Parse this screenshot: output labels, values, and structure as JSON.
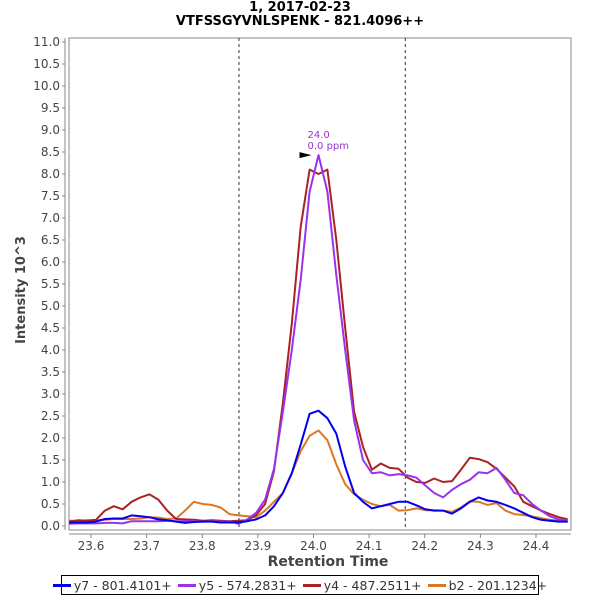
{
  "chart_data": {
    "type": "line",
    "title": "1, 2017-02-23",
    "subtitle": "VTFSSGYVNLSPENK - 821.4096++",
    "xlabel": "Retention Time",
    "ylabel": "Intensity 10^3",
    "xlim": [
      23.56,
      24.463
    ],
    "ylim": [
      0.0,
      11.1
    ],
    "x_ticks": [
      "23.6",
      "23.7",
      "23.8",
      "23.9",
      "24.0",
      "24.1",
      "24.2",
      "24.3",
      "24.4"
    ],
    "y_ticks": [
      "0.0",
      "0.5",
      "1.0",
      "1.5",
      "2.0",
      "2.5",
      "3.0",
      "3.5",
      "4.0",
      "4.5",
      "5.0",
      "5.5",
      "6.0",
      "6.5",
      "7.0",
      "7.5",
      "8.0",
      "8.5",
      "9.0",
      "9.5",
      "10.0",
      "10.5",
      "11.0"
    ],
    "grid": false,
    "legend_position": "bottom",
    "boundaries": [
      23.866,
      24.165
    ],
    "annotation": {
      "rt": "24.0",
      "ppm": "0.0 ppm",
      "x": 24.0,
      "y": 8.43
    },
    "x": [
      23.561,
      23.577,
      23.593,
      23.609,
      23.625,
      23.641,
      23.657,
      23.673,
      23.689,
      23.705,
      23.721,
      23.737,
      23.753,
      23.769,
      23.785,
      23.801,
      23.817,
      23.833,
      23.849,
      23.865,
      23.881,
      23.897,
      23.913,
      23.929,
      23.945,
      23.961,
      23.977,
      23.993,
      24.009,
      24.025,
      24.041,
      24.057,
      24.073,
      24.089,
      24.105,
      24.121,
      24.137,
      24.153,
      24.169,
      24.185,
      24.201,
      24.217,
      24.233,
      24.249,
      24.265,
      24.281,
      24.297,
      24.313,
      24.329,
      24.345,
      24.361,
      24.377,
      24.393,
      24.409,
      24.425,
      24.441,
      24.457
    ],
    "series": [
      {
        "name": "y7 - 801.4101+",
        "color": "#0000ee",
        "values": [
          0.08,
          0.08,
          0.08,
          0.1,
          0.16,
          0.17,
          0.17,
          0.24,
          0.22,
          0.2,
          0.15,
          0.13,
          0.1,
          0.07,
          0.09,
          0.1,
          0.1,
          0.08,
          0.08,
          0.08,
          0.11,
          0.15,
          0.24,
          0.45,
          0.75,
          1.2,
          1.85,
          2.55,
          2.62,
          2.45,
          2.1,
          1.35,
          0.75,
          0.55,
          0.4,
          0.45,
          0.5,
          0.55,
          0.55,
          0.47,
          0.38,
          0.35,
          0.35,
          0.28,
          0.4,
          0.55,
          0.65,
          0.58,
          0.55,
          0.48,
          0.4,
          0.3,
          0.2,
          0.14,
          0.12,
          0.1,
          0.1
        ]
      },
      {
        "name": "y5 - 574.2831+",
        "color": "#9933ee",
        "values": [
          0.05,
          0.06,
          0.06,
          0.06,
          0.07,
          0.07,
          0.06,
          0.11,
          0.11,
          0.11,
          0.11,
          0.12,
          0.11,
          0.11,
          0.11,
          0.1,
          0.11,
          0.1,
          0.11,
          0.05,
          0.15,
          0.3,
          0.6,
          1.3,
          2.6,
          4.0,
          5.6,
          7.6,
          8.43,
          7.6,
          5.7,
          4.0,
          2.4,
          1.5,
          1.2,
          1.22,
          1.15,
          1.18,
          1.15,
          1.1,
          0.92,
          0.75,
          0.65,
          0.82,
          0.95,
          1.05,
          1.22,
          1.2,
          1.32,
          1.05,
          0.75,
          0.7,
          0.5,
          0.35,
          0.22,
          0.15,
          0.12
        ]
      },
      {
        "name": "y4 - 487.2511+",
        "color": "#aa2222",
        "values": [
          0.1,
          0.13,
          0.12,
          0.14,
          0.35,
          0.45,
          0.38,
          0.55,
          0.65,
          0.72,
          0.6,
          0.35,
          0.16,
          0.15,
          0.14,
          0.12,
          0.13,
          0.12,
          0.11,
          0.12,
          0.13,
          0.25,
          0.5,
          1.25,
          2.8,
          4.6,
          6.8,
          8.1,
          8.0,
          8.1,
          6.5,
          4.5,
          2.6,
          1.8,
          1.28,
          1.42,
          1.32,
          1.3,
          1.1,
          1.0,
          0.98,
          1.08,
          1.0,
          1.02,
          1.28,
          1.55,
          1.52,
          1.45,
          1.3,
          1.1,
          0.9,
          0.55,
          0.45,
          0.35,
          0.27,
          0.2,
          0.15
        ]
      },
      {
        "name": "b2 - 201.1234+",
        "color": "#dd7722",
        "values": [
          0.12,
          0.12,
          0.13,
          0.13,
          0.14,
          0.16,
          0.16,
          0.16,
          0.17,
          0.2,
          0.19,
          0.16,
          0.17,
          0.35,
          0.55,
          0.5,
          0.48,
          0.42,
          0.27,
          0.24,
          0.22,
          0.2,
          0.35,
          0.55,
          0.75,
          1.2,
          1.7,
          2.05,
          2.17,
          1.95,
          1.4,
          0.95,
          0.72,
          0.6,
          0.5,
          0.45,
          0.48,
          0.35,
          0.36,
          0.4,
          0.36,
          0.36,
          0.35,
          0.32,
          0.42,
          0.56,
          0.55,
          0.48,
          0.52,
          0.35,
          0.27,
          0.25,
          0.22,
          0.18,
          0.14,
          0.12,
          0.1
        ]
      }
    ]
  }
}
